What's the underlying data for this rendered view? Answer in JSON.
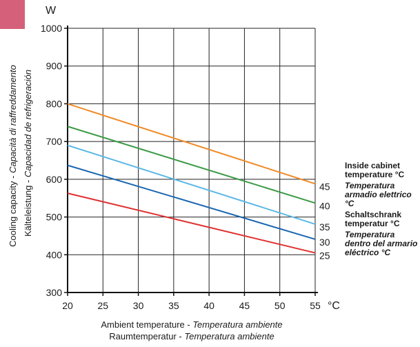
{
  "chart_data": {
    "type": "line",
    "y_unit": "W",
    "x_unit": "°C",
    "xlim": [
      20,
      55
    ],
    "ylim": [
      300,
      1000
    ],
    "x_ticks": [
      20,
      25,
      30,
      35,
      40,
      45,
      50,
      55
    ],
    "y_ticks": [
      300,
      400,
      500,
      600,
      700,
      800,
      900,
      1000
    ],
    "grid": true,
    "ylabel": {
      "line1_plain": "Cooling capacity - ",
      "line1_italic": "Capacità di raffreddamento",
      "line2_plain": "Kälteleistung - ",
      "line2_italic": "Capacidad de refrigeración"
    },
    "xlabel": {
      "line1_plain": "Ambient temperature - ",
      "line1_italic": "Temperatura ambiente",
      "line2_plain": "Raumtemperatur - ",
      "line2_italic": "Temperatura ambiente"
    },
    "legend": {
      "title_en": "Inside cabinet temperature °C",
      "title_it": "Temperatura armadio elettrico °C",
      "title_de": "Schaltschrank temperatur °C",
      "title_es": "Temperatura dentro del armario eléctrico °C"
    },
    "series": [
      {
        "label": "45",
        "color": "#f08a24",
        "x": [
          20,
          55
        ],
        "y": [
          800,
          588
        ]
      },
      {
        "label": "40",
        "color": "#3a9a45",
        "x": [
          20,
          55
        ],
        "y": [
          740,
          537
        ]
      },
      {
        "label": "35",
        "color": "#5bb8e6",
        "x": [
          20,
          55
        ],
        "y": [
          690,
          481
        ]
      },
      {
        "label": "30",
        "color": "#1a66b0",
        "x": [
          20,
          55
        ],
        "y": [
          637,
          441
        ]
      },
      {
        "label": "25",
        "color": "#e03030",
        "x": [
          20,
          55
        ],
        "y": [
          563,
          405
        ]
      }
    ]
  }
}
